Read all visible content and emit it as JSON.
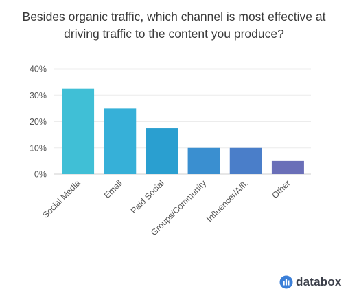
{
  "chart_data": {
    "type": "bar",
    "title_lines": [
      "Besides organic traffic, which channel is most effective at",
      "driving traffic to the content you produce?"
    ],
    "categories": [
      "Social Media",
      "Email",
      "Paid Social",
      "Groups/Community",
      "Influencer/Affl.",
      "Other"
    ],
    "values": [
      32.5,
      25,
      17.5,
      10,
      10,
      5
    ],
    "bar_colors": [
      "#40bfd6",
      "#36b0d8",
      "#2a9fd0",
      "#3a8fd0",
      "#4a7ec9",
      "#6a6fb8"
    ],
    "yticks": [
      "0%",
      "10%",
      "20%",
      "30%",
      "40%"
    ],
    "ylim": [
      0,
      40
    ],
    "grid": true,
    "xlabel": "",
    "ylabel": ""
  },
  "brand": {
    "name": "databox",
    "icon": "databox-logo-icon",
    "color": "#3b7fd8"
  }
}
